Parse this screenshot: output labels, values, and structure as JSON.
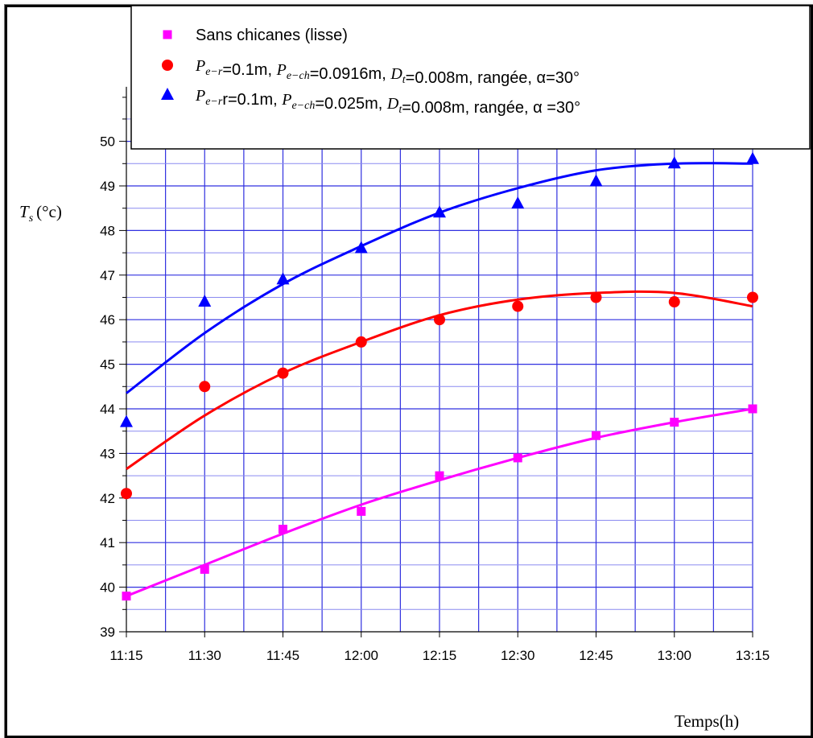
{
  "chart_data": {
    "type": "line",
    "xlabel": "Temps(h)",
    "ylabel": "T_s (°c)",
    "ylabel_main": "T",
    "ylabel_sub": "s",
    "ylabel_unit": "(°c)",
    "categories": [
      "11:15",
      "11:30",
      "11:45",
      "12:00",
      "12:15",
      "12:30",
      "12:45",
      "13:00",
      "13:15"
    ],
    "yticks": [
      "39",
      "40",
      "41",
      "42",
      "43",
      "44",
      "45",
      "46",
      "47",
      "48",
      "49",
      "50"
    ],
    "ylim": [
      39,
      50.5
    ],
    "grid": true,
    "legend_position": "top-right",
    "series": [
      {
        "name": "Sans chicanes (lisse)",
        "color": "#ff00ff",
        "marker": "square",
        "values": [
          39.8,
          40.4,
          41.3,
          41.7,
          42.5,
          42.9,
          43.4,
          43.7,
          44.0
        ],
        "fit": [
          39.8,
          40.5,
          41.2,
          41.85,
          42.4,
          42.9,
          43.35,
          43.7,
          44.0
        ]
      },
      {
        "name": "P_e-r=0.1m, P_e-ch=0.0916m, D_t=0.008m, rangée, α=30°",
        "color": "#ff0000",
        "marker": "circle",
        "values": [
          42.1,
          44.5,
          44.8,
          45.5,
          46.0,
          46.3,
          46.5,
          46.4,
          46.5
        ],
        "fit": [
          42.65,
          43.85,
          44.8,
          45.5,
          46.1,
          46.45,
          46.6,
          46.6,
          46.3
        ]
      },
      {
        "name": "P_e-r r=0.1m, P_e-ch=0.025m, D_t=0.008m, rangée, α =30°",
        "color": "#0000ff",
        "marker": "triangle",
        "values": [
          43.7,
          46.4,
          46.9,
          47.6,
          48.4,
          48.6,
          49.1,
          49.5,
          49.6
        ],
        "fit": [
          44.35,
          45.7,
          46.8,
          47.65,
          48.4,
          48.95,
          49.35,
          49.5,
          49.5
        ]
      }
    ],
    "legend_rows": [
      [
        {
          "t": "Sans chicanes (lisse)"
        }
      ],
      [
        {
          "t": "P",
          "i": true
        },
        {
          "t": "e−r",
          "i": true,
          "sub": true
        },
        {
          "t": "=0.1m, "
        },
        {
          "t": "P",
          "i": true
        },
        {
          "t": "e−ch",
          "i": true,
          "sub": true
        },
        {
          "t": "=0.0916m, "
        },
        {
          "t": "D",
          "i": true
        },
        {
          "t": "t",
          "i": true,
          "sub": true
        },
        {
          "t": "=0.008m, rangée, α=30°"
        }
      ],
      [
        {
          "t": "P",
          "i": true
        },
        {
          "t": "e−r",
          "i": true,
          "sub": true
        },
        {
          "t": "r=0.1m, "
        },
        {
          "t": "P",
          "i": true
        },
        {
          "t": "e−ch",
          "i": true,
          "sub": true
        },
        {
          "t": "=0.025m, "
        },
        {
          "t": "D",
          "i": true
        },
        {
          "t": "t",
          "i": true,
          "sub": true
        },
        {
          "t": "=0.008m, rangée, α =30°"
        }
      ]
    ]
  }
}
